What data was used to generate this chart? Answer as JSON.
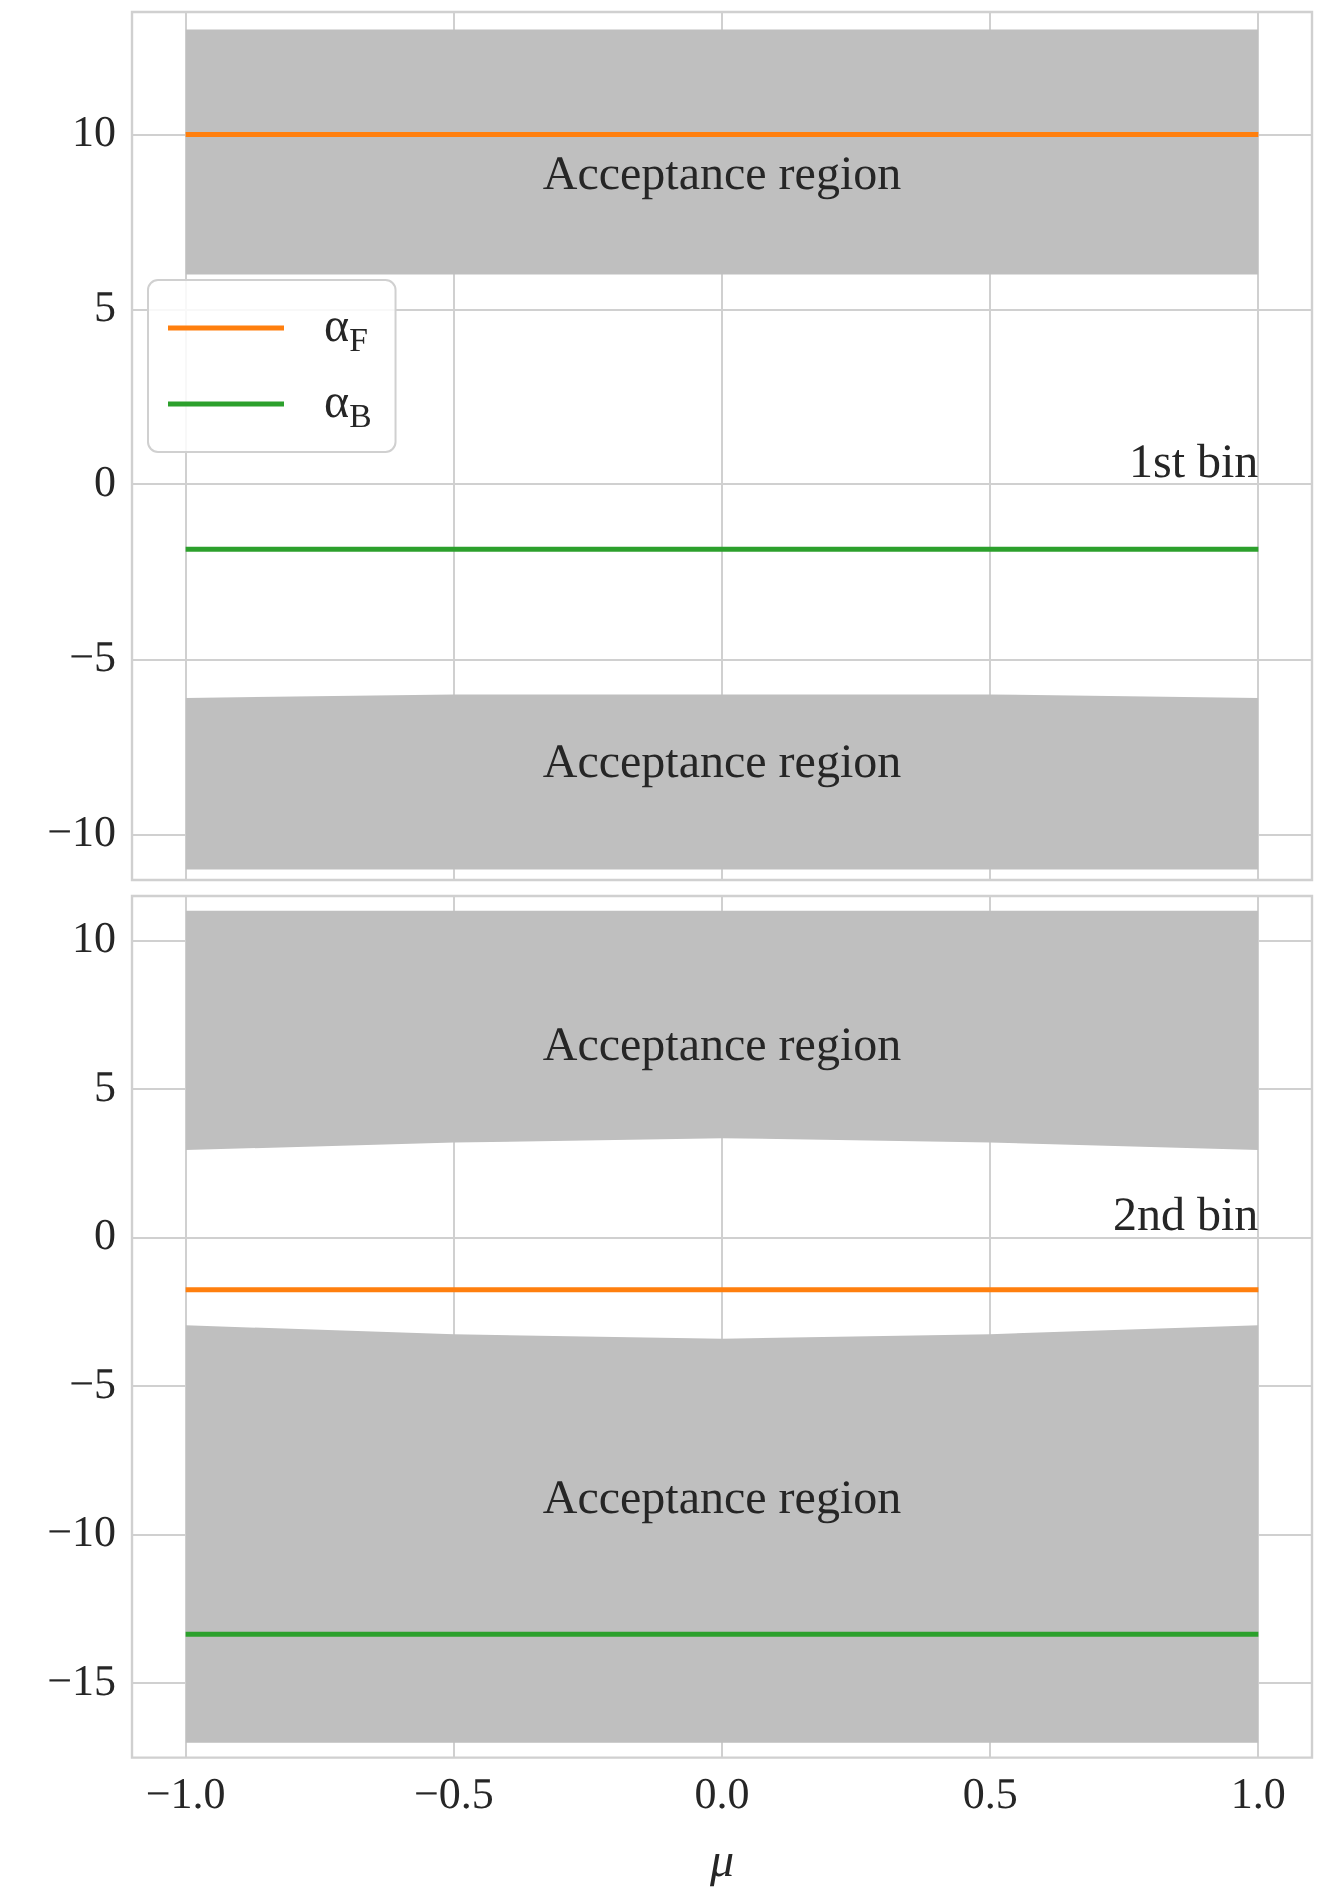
{
  "chart_data": [
    {
      "type": "line",
      "xlim": [
        -1.1,
        1.1
      ],
      "xticks": [
        {
          "value": -1,
          "label": null
        },
        {
          "value": -0.5,
          "label": null
        },
        {
          "value": 0,
          "label": null
        },
        {
          "value": 0.5,
          "label": null
        },
        {
          "value": 1,
          "label": null
        }
      ],
      "ylim": [
        -11.3,
        13.5
      ],
      "yticks": [
        {
          "value": -10,
          "label": "−10"
        },
        {
          "value": -5,
          "label": "−5"
        },
        0,
        5,
        10
      ],
      "tick_labels": "y",
      "grid": true,
      "legend": "center left",
      "series": [
        {
          "color": "#bfbfbf",
          "x": [
            -1,
            -0.5,
            0,
            0.5,
            1
          ],
          "values": [
            null,
            null,
            null,
            null,
            null
          ],
          "lower": [
            6,
            6,
            6,
            6,
            6
          ],
          "upper": [
            13,
            13,
            13,
            13,
            13
          ]
        },
        {
          "color": "#bfbfbf",
          "x": [
            -1,
            -0.5,
            0,
            0.5,
            1
          ],
          "values": [
            null,
            null,
            null,
            null,
            null
          ],
          "lower": [
            -11,
            -11,
            -11,
            -11,
            -11
          ],
          "upper": [
            -6.1,
            -6,
            -6,
            -6,
            -6.1
          ]
        },
        {
          "name": "α$_{F}$",
          "color": "#ff7f0e",
          "x": [
            -1,
            1
          ],
          "values": [
            10,
            10
          ]
        },
        {
          "name": "α$_{B}$",
          "color": "#2ca02c",
          "x": [
            -1,
            1
          ],
          "values": [
            -1.85,
            -1.85
          ]
        }
      ],
      "annotations": [
        "Acceptance region",
        "Acceptance region",
        "1st bin"
      ]
    },
    {
      "type": "line",
      "xlabel": "μ",
      "xlim": [
        -1.1,
        1.1
      ],
      "xticks": [
        {
          "value": -1,
          "label": "−1.0"
        },
        {
          "value": -0.5,
          "label": "−0.5"
        },
        {
          "value": 0,
          "label": "0.0"
        },
        {
          "value": 0.5,
          "label": "0.5"
        },
        {
          "value": 1,
          "label": "1.0"
        }
      ],
      "ylim": [
        -17.5,
        11.5
      ],
      "yticks": [
        {
          "value": -15,
          "label": "−15"
        },
        {
          "value": -10,
          "label": "−10"
        },
        {
          "value": -5,
          "label": "−5"
        },
        0,
        5,
        10
      ],
      "grid": true,
      "series": [
        {
          "color": "#bfbfbf",
          "x": [
            -1,
            -0.5,
            0,
            0.5,
            1
          ],
          "values": [
            null,
            null,
            null,
            null,
            null
          ],
          "lower": [
            2.95,
            3.2,
            3.35,
            3.2,
            2.95
          ],
          "upper": [
            11,
            11,
            11,
            11,
            11
          ]
        },
        {
          "color": "#bfbfbf",
          "x": [
            -1,
            -0.5,
            0,
            0.5,
            1
          ],
          "values": [
            null,
            null,
            null,
            null,
            null
          ],
          "lower": [
            -17,
            -17,
            -17,
            -17,
            -17
          ],
          "upper": [
            -2.95,
            -3.25,
            -3.4,
            -3.25,
            -2.95
          ]
        },
        {
          "color": "#ff7f0e",
          "x": [
            -1,
            1
          ],
          "values": [
            -1.75,
            -1.75
          ]
        },
        {
          "color": "#2ca02c",
          "x": [
            -1,
            1
          ],
          "values": [
            -13.35,
            -13.35
          ]
        }
      ],
      "annotations": [
        "Acceptance region",
        "Acceptance region",
        "2nd bin"
      ]
    }
  ]
}
